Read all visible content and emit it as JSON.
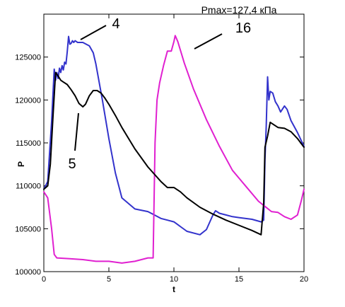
{
  "chart_data": {
    "type": "line",
    "title": "Pmax=127,4 кПа",
    "xlabel": "t",
    "ylabel": "P",
    "xlim": [
      0,
      20
    ],
    "ylim": [
      100000,
      130000
    ],
    "x_ticks": [
      0,
      5,
      10,
      15,
      20
    ],
    "x_tick_labels": [
      "0",
      "5",
      "10",
      "15",
      "20"
    ],
    "y_ticks": [
      100000,
      105000,
      110000,
      115000,
      120000,
      125000
    ],
    "y_tick_labels": [
      "100000",
      "105000",
      "110000",
      "115000",
      "120000",
      "125000"
    ],
    "grid": false,
    "legend": "none",
    "series": [
      {
        "name": "4",
        "color": "#3333cc",
        "x": [
          0,
          0.3,
          0.6,
          0.8,
          0.9,
          1.0,
          1.1,
          1.2,
          1.3,
          1.4,
          1.5,
          1.6,
          1.7,
          1.8,
          1.9,
          2.0,
          2.1,
          2.2,
          2.3,
          2.4,
          2.6,
          2.8,
          3.0,
          3.5,
          3.8,
          4.0,
          4.5,
          5.0,
          5.5,
          6.0,
          7.0,
          8.0,
          8.5,
          9.0,
          9.5,
          10.0,
          11.0,
          12.0,
          12.5,
          13.0,
          13.2,
          13.5,
          14.0,
          14.5,
          15.0,
          16.0,
          16.7,
          16.9,
          17.0,
          17.1,
          17.2,
          17.3,
          17.4,
          17.6,
          17.8,
          18.0,
          18.2,
          18.5,
          18.7,
          19.0,
          19.5,
          20.0
        ],
        "y": [
          109600,
          110500,
          117500,
          123600,
          122300,
          123200,
          122500,
          123700,
          123200,
          124000,
          123500,
          124400,
          124200,
          125600,
          127400,
          126500,
          126600,
          126900,
          126700,
          126900,
          126700,
          126700,
          126700,
          126300,
          125500,
          124200,
          120000,
          115500,
          111500,
          108600,
          107300,
          107000,
          106600,
          106200,
          106000,
          105800,
          104700,
          104300,
          104900,
          106600,
          107100,
          106800,
          106600,
          106400,
          106300,
          106100,
          105800,
          106000,
          113000,
          117000,
          122700,
          120000,
          121000,
          120800,
          119800,
          119300,
          118600,
          119300,
          118900,
          117600,
          116200,
          114600
        ]
      },
      {
        "name": "16",
        "color": "#e020d0",
        "x": [
          0,
          0.3,
          0.6,
          0.8,
          1.0,
          2.0,
          3.0,
          4.0,
          5.0,
          6.0,
          7.0,
          8.0,
          8.4,
          8.55,
          8.7,
          8.9,
          9.2,
          9.5,
          9.8,
          10.0,
          10.1,
          10.3,
          10.8,
          11.5,
          12.5,
          13.5,
          14.5,
          15.5,
          16.5,
          17.0,
          17.5,
          18.0,
          18.5,
          19.0,
          19.5,
          19.8,
          20.0
        ],
        "y": [
          109300,
          108600,
          105000,
          102000,
          101600,
          101500,
          101400,
          101200,
          101200,
          101000,
          101200,
          101600,
          101600,
          115000,
          120000,
          122000,
          124000,
          125700,
          125700,
          126800,
          127500,
          126800,
          124300,
          121300,
          117700,
          114600,
          111800,
          110000,
          108200,
          107600,
          107000,
          106900,
          106400,
          106100,
          106600,
          108300,
          109600
        ]
      },
      {
        "name": "5",
        "color": "#000000",
        "x": [
          0,
          0.3,
          0.5,
          0.7,
          0.9,
          1.1,
          1.3,
          1.5,
          1.8,
          2.1,
          2.4,
          2.7,
          3.0,
          3.2,
          3.5,
          3.8,
          4.1,
          4.4,
          4.7,
          5.0,
          5.5,
          6.0,
          7.0,
          8.0,
          9.0,
          9.5,
          10.0,
          10.5,
          11.0,
          12.0,
          13.0,
          14.0,
          15.0,
          16.0,
          16.7,
          16.9,
          17.0,
          17.2,
          17.4,
          17.6,
          18.0,
          18.5,
          19.0,
          19.5,
          20.0
        ],
        "y": [
          109600,
          110000,
          112500,
          118000,
          123200,
          122800,
          122300,
          122100,
          121800,
          121200,
          120500,
          119600,
          119200,
          119500,
          120500,
          121100,
          121100,
          120800,
          120200,
          119500,
          118200,
          116800,
          114300,
          112200,
          110500,
          109800,
          109800,
          109300,
          108600,
          107500,
          106700,
          106000,
          105400,
          104800,
          104300,
          108000,
          114500,
          115800,
          117400,
          117200,
          116800,
          116700,
          116300,
          115500,
          114500
        ]
      }
    ],
    "annotations": [
      "4",
      "16",
      "5"
    ]
  }
}
